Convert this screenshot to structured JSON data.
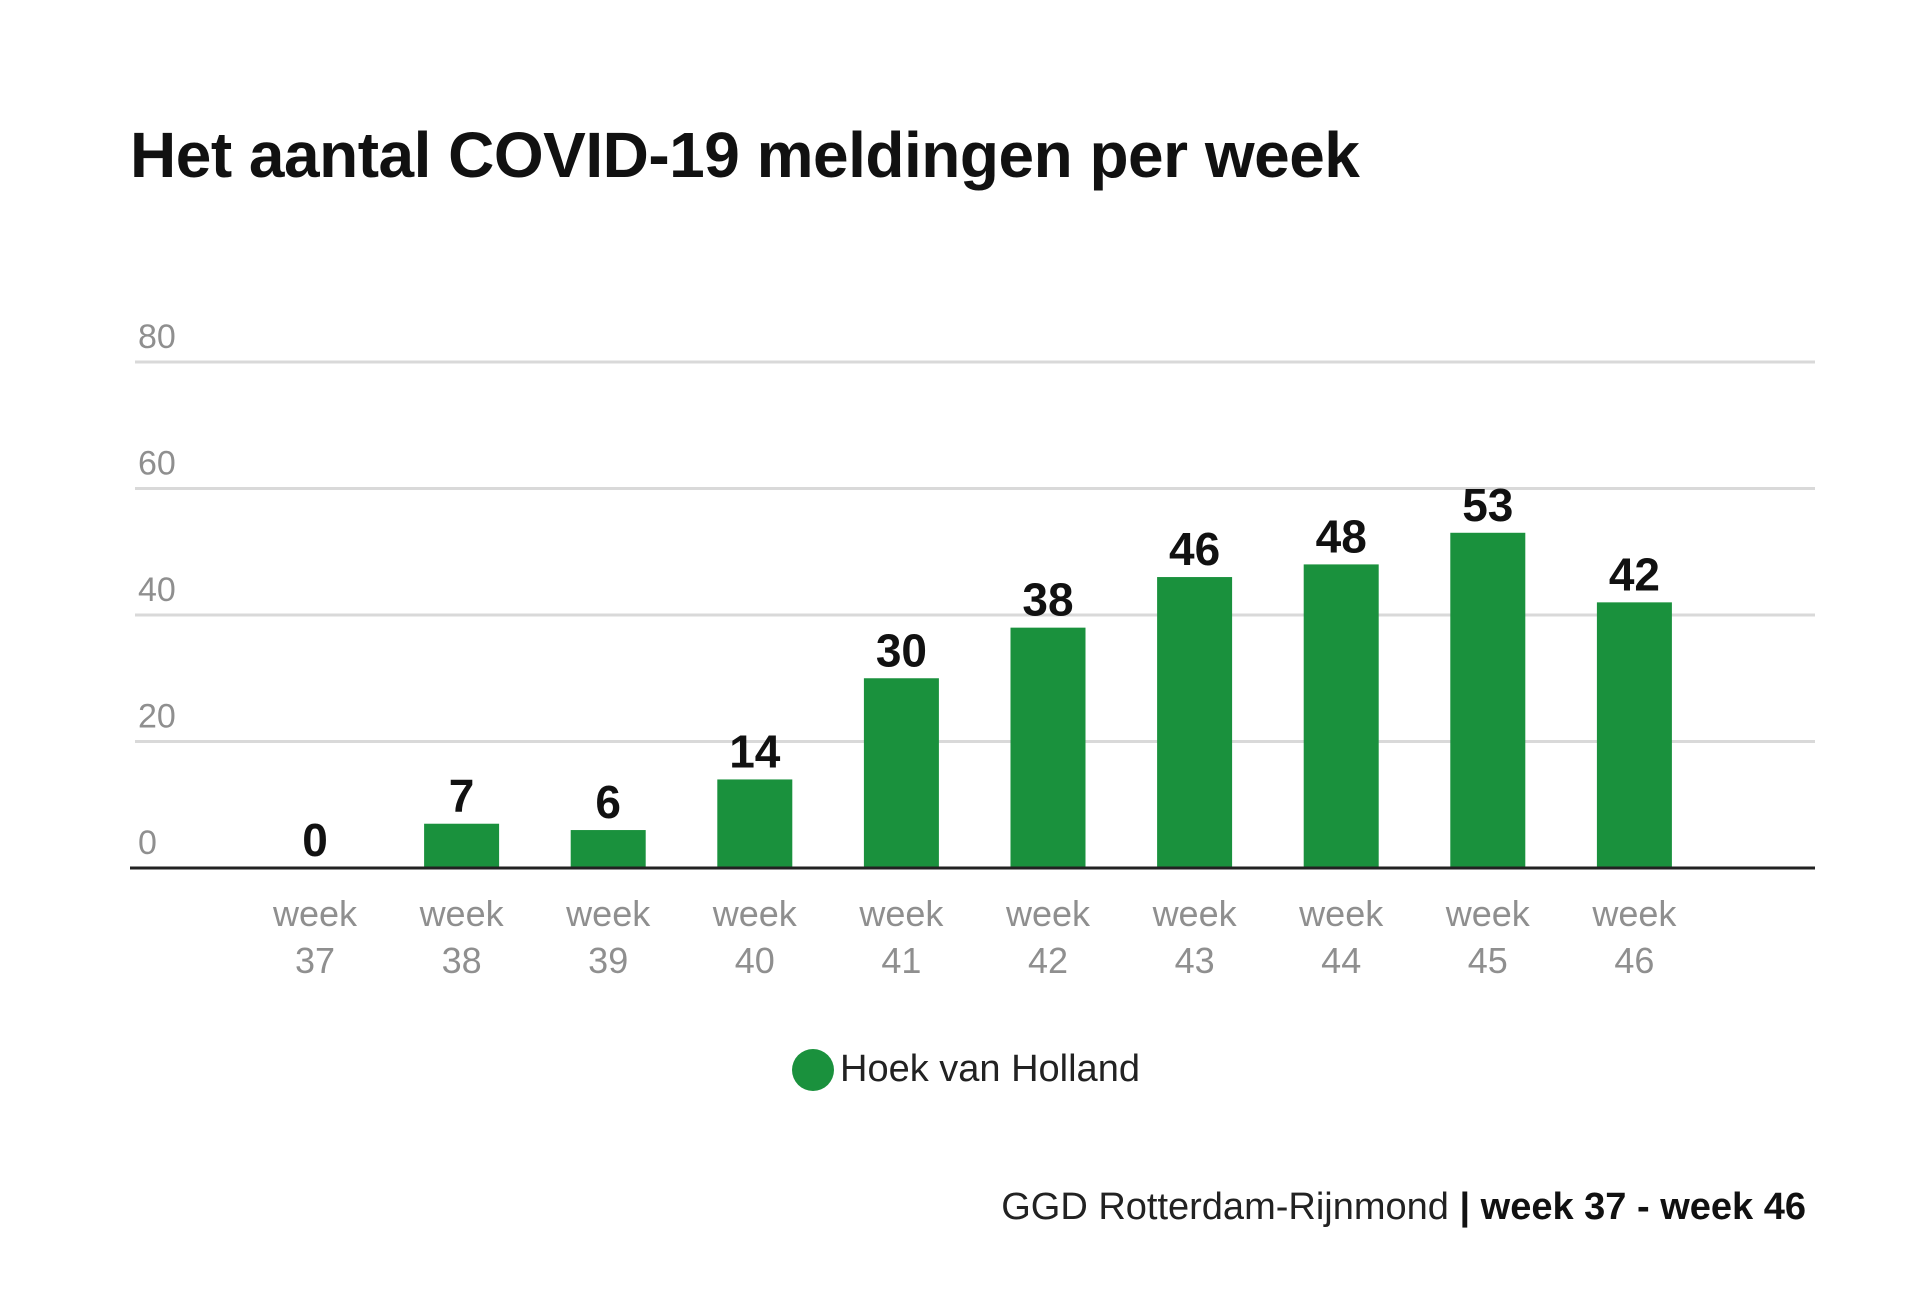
{
  "colors": {
    "bar": "#1a913d",
    "grid": "#d9d9d9",
    "axis": "#222222",
    "tick_text": "#8f8f8f",
    "label_text": "#111111"
  },
  "source": {
    "name": "GGD Rotterdam-Rijnmond",
    "separator": "|",
    "range": "week 37 - week 46"
  },
  "chart_data": {
    "type": "bar",
    "title": "Het aantal COVID-19 meldingen per week",
    "xlabel": "",
    "ylabel": "",
    "ylim": [
      0,
      80
    ],
    "yticks": [
      0,
      20,
      40,
      60,
      80
    ],
    "grid": true,
    "legend_position": "bottom-center",
    "categories": [
      [
        "week",
        "37"
      ],
      [
        "week",
        "38"
      ],
      [
        "week",
        "39"
      ],
      [
        "week",
        "40"
      ],
      [
        "week",
        "41"
      ],
      [
        "week",
        "42"
      ],
      [
        "week",
        "43"
      ],
      [
        "week",
        "44"
      ],
      [
        "week",
        "45"
      ],
      [
        "week",
        "46"
      ]
    ],
    "series": [
      {
        "name": "Hoek van Holland",
        "values": [
          0,
          7,
          6,
          14,
          30,
          38,
          46,
          48,
          53,
          42
        ]
      }
    ],
    "data_labels": [
      "0",
      "7",
      "6",
      "14",
      "30",
      "38",
      "46",
      "48",
      "53",
      "42"
    ]
  }
}
